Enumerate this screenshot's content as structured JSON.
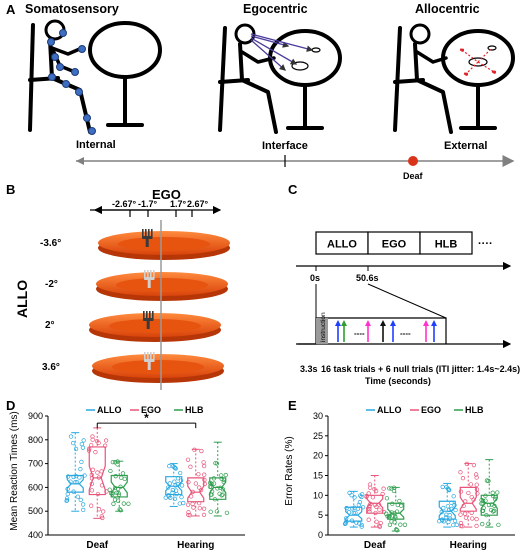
{
  "panel_labels": {
    "a": "A",
    "b": "B",
    "c": "C",
    "d": "D",
    "e": "E"
  },
  "panel_a": {
    "scenes": [
      "Somatosensory",
      "Egocentric",
      "Allocentric"
    ],
    "axis": {
      "left": "Internal",
      "middle": "Interface",
      "right": "External",
      "marker": "Deaf"
    }
  },
  "panel_b": {
    "top_label": "EGO",
    "ego_ticks": [
      "-2.67°",
      "-1.7°",
      "1.7°",
      "2.67°"
    ],
    "side_label": "ALLO",
    "allo_rows": [
      "-3.6°",
      "-2°",
      "2°",
      "3.6°"
    ],
    "fork_colors": [
      "#3a3a3a",
      "#d0d0d0",
      "#3a3a3a",
      "#d0d0d0"
    ]
  },
  "panel_c": {
    "blocks": [
      "ALLO",
      "EGO",
      "HLB"
    ],
    "ellipsis": "····",
    "t0": "0s",
    "t1": "50.6s",
    "instruction": "instruction",
    "trial_text": "16 task trials + 6 null trials (ITI jitter: 1.4s~2.4s)",
    "time_start": "3.3s",
    "xlabel": "Time (seconds)",
    "dash": "----",
    "arrow_colors": [
      "#1f3fff",
      "#2e9e2e",
      "#ff33cc",
      "#111111",
      "#1f3fff",
      "#ff33cc",
      "#1f3fff"
    ]
  },
  "colors": {
    "allo": "#29a8e0",
    "ego": "#e8557a",
    "hlb": "#2e9e4e"
  },
  "chart_data": [
    {
      "type": "box",
      "title": "",
      "ylabel": "Mean Reaction Times (ms)",
      "ylim": [
        400,
        900
      ],
      "yticks": [
        "400",
        "500",
        "600",
        "700",
        "800",
        "900"
      ],
      "categories": [
        "Deaf",
        "Hearing"
      ],
      "significance": "*",
      "series": [
        {
          "name": "ALLO",
          "groups": [
            {
              "min": 500,
              "q1": 580,
              "median": 615,
              "q3": 650,
              "max": 830
            },
            {
              "min": 520,
              "q1": 570,
              "median": 605,
              "q3": 645,
              "max": 700
            }
          ]
        },
        {
          "name": "EGO",
          "groups": [
            {
              "min": 470,
              "q1": 570,
              "median": 640,
              "q3": 770,
              "max": 850
            },
            {
              "min": 480,
              "q1": 540,
              "median": 580,
              "q3": 640,
              "max": 760
            }
          ]
        },
        {
          "name": "HLB",
          "groups": [
            {
              "min": 500,
              "q1": 560,
              "median": 600,
              "q3": 650,
              "max": 710
            },
            {
              "min": 480,
              "q1": 550,
              "median": 600,
              "q3": 640,
              "max": 790
            }
          ]
        }
      ]
    },
    {
      "type": "box",
      "title": "",
      "ylabel": "Error Rates (%)",
      "ylim": [
        0,
        30
      ],
      "yticks": [
        "0",
        "5",
        "10",
        "15",
        "20",
        "25",
        "30"
      ],
      "categories": [
        "Deaf",
        "Hearing"
      ],
      "series": [
        {
          "name": "ALLO",
          "groups": [
            {
              "min": 2,
              "q1": 3.5,
              "median": 5,
              "q3": 7,
              "max": 11
            },
            {
              "min": 2,
              "q1": 4,
              "median": 6,
              "q3": 8.5,
              "max": 13
            }
          ]
        },
        {
          "name": "EGO",
          "groups": [
            {
              "min": 2,
              "q1": 5.5,
              "median": 8,
              "q3": 10,
              "max": 15
            },
            {
              "min": 2,
              "q1": 6,
              "median": 8,
              "q3": 12,
              "max": 18
            }
          ]
        },
        {
          "name": "HLB",
          "groups": [
            {
              "min": 1,
              "q1": 4,
              "median": 5.5,
              "q3": 8,
              "max": 12
            },
            {
              "min": 2,
              "q1": 5,
              "median": 8,
              "q3": 10,
              "max": 19
            }
          ]
        }
      ]
    }
  ]
}
